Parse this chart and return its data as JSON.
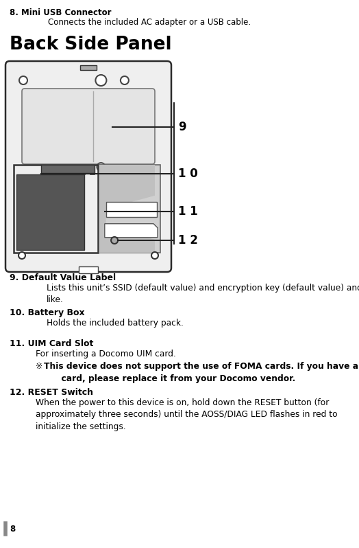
{
  "bg_color": "#ffffff",
  "text_color": "#000000",
  "page_number": "8",
  "section8_title": "8. Mini USB Connector",
  "section8_body": "Connects the included AC adapter or a USB cable.",
  "back_side_title": "Back Side Panel",
  "section9_title": "9. Default Value Label",
  "section9_body": "Lists this unit’s SSID (default value) and encryption key (default value) and the\nlike.",
  "section10_title": "10. Battery Box",
  "section10_body": "Holds the included battery pack.",
  "section11_title": "11. UIM Card Slot",
  "section11_body": "For inserting a Docomo UIM card.",
  "section11_note_sym": "※",
  "section11_note_bold": "This device does not support the use of FOMA cards. If you have a FOMA\n      card, please replace it from your Docomo vendor.",
  "section12_title": "12. RESET Switch",
  "section12_body": "When the power to this device is on, hold down the RESET button (for\napproximately three seconds) until the AOSS/DIAG LED flashes in red to\ninitialize the settings."
}
